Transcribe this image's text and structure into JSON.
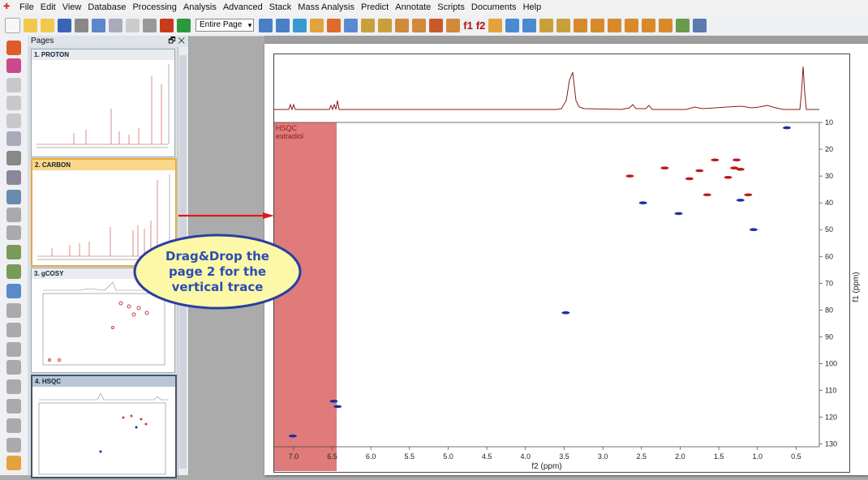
{
  "menubar": {
    "items": [
      "File",
      "Edit",
      "View",
      "Database",
      "Processing",
      "Analysis",
      "Advanced",
      "Stack",
      "Mass Analysis",
      "Predict",
      "Annotate",
      "Scripts",
      "Documents",
      "Help"
    ]
  },
  "toolbar": {
    "zoom_select": "Entire Page",
    "f1_label": "f1",
    "f2_label": "f2"
  },
  "pages_panel": {
    "title": "Pages",
    "pages": [
      {
        "label": "1. PROTON"
      },
      {
        "label": "2. CARBON"
      },
      {
        "label": "3. gCOSY"
      },
      {
        "label": "4. HSQC"
      }
    ]
  },
  "spectrum": {
    "title_line1": "HSQC",
    "title_line2": "estradiol",
    "x_label": "f2 (ppm)",
    "y_label": "f1 (ppm)",
    "colors": {
      "positive": "#c01818",
      "negative": "#1a2fa8",
      "trace": "#8b1a1a",
      "strip": "#e07b7b"
    }
  },
  "chart_data": {
    "type": "scatter",
    "title": "",
    "xlabel": "f2 (ppm)",
    "ylabel": "f1 (ppm)",
    "xlim": [
      7.25,
      0.2
    ],
    "ylim": [
      10,
      131
    ],
    "x_ticks": [
      "7.0",
      "6.5",
      "6.0",
      "5.5",
      "5.0",
      "4.5",
      "4.0",
      "3.5",
      "3.0",
      "2.5",
      "2.0",
      "1.5",
      "1.0",
      "0.5"
    ],
    "y_ticks": [
      "10",
      "20",
      "30",
      "40",
      "50",
      "60",
      "70",
      "80",
      "90",
      "100",
      "110",
      "120",
      "130"
    ],
    "series": [
      {
        "color": "#1a2fa8",
        "points": [
          [
            0.62,
            12
          ],
          [
            3.48,
            81
          ],
          [
            6.48,
            114
          ],
          [
            6.43,
            116
          ],
          [
            7.01,
            127
          ],
          [
            2.02,
            44
          ],
          [
            1.22,
            39
          ],
          [
            1.05,
            50
          ],
          [
            2.48,
            40
          ]
        ]
      },
      {
        "color": "#c01818",
        "points": [
          [
            1.55,
            24
          ],
          [
            1.27,
            24
          ],
          [
            2.2,
            27
          ],
          [
            1.75,
            28
          ],
          [
            1.3,
            27
          ],
          [
            1.22,
            27.5
          ],
          [
            2.65,
            30
          ],
          [
            1.88,
            31
          ],
          [
            1.38,
            30.5
          ],
          [
            1.65,
            37
          ],
          [
            1.12,
            37
          ]
        ]
      }
    ]
  },
  "callout": {
    "text": "Drag&Drop the\npage 2 for the\nvertical trace"
  }
}
